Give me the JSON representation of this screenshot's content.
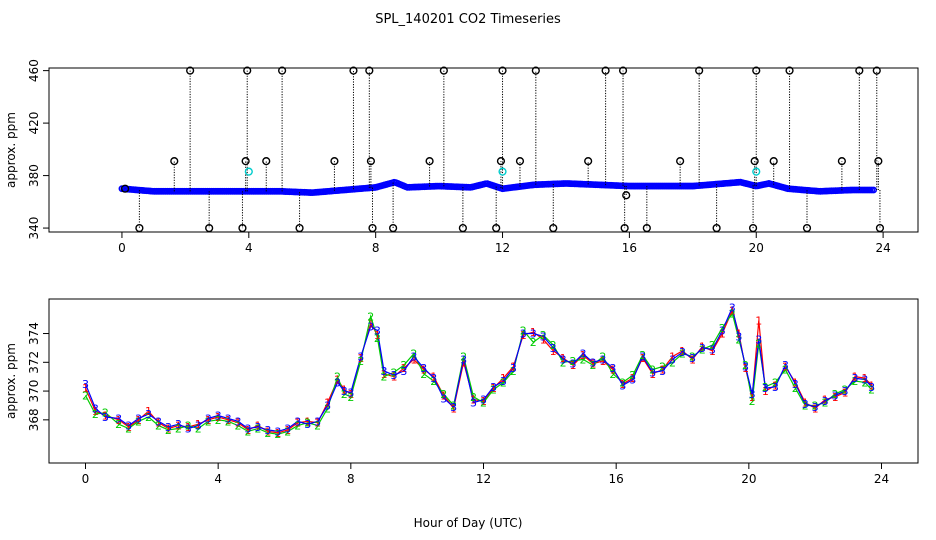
{
  "figure": {
    "title": "SPL_140201  CO2 Timeseries",
    "xlabel": "Hour of Day (UTC)"
  },
  "colors": {
    "series1": "#ff0000",
    "series2": "#00cc00",
    "series3": "#0000ff",
    "outlier": "#000000",
    "flag": "#00cccc",
    "axis": "#000000"
  },
  "chart_data": [
    {
      "type": "scatter",
      "panel": "top",
      "ylabel": "approx. ppm",
      "xlim": [
        -2.3,
        25.1
      ],
      "ylim": [
        337,
        462
      ],
      "xticks": [
        0,
        4,
        8,
        12,
        16,
        20,
        24
      ],
      "yticks": [
        340,
        380,
        420,
        460
      ],
      "baseline": {
        "x": [
          0,
          1,
          2,
          3,
          4,
          5,
          6,
          7,
          7.5,
          8,
          8.6,
          9,
          10,
          11,
          11.5,
          12,
          13,
          14,
          15,
          16,
          17,
          18,
          19,
          19.5,
          20,
          20.4,
          21,
          22,
          23,
          23.7
        ],
        "y": [
          370,
          368,
          368,
          368,
          368,
          368,
          367,
          369,
          370,
          371,
          375,
          371,
          372,
          371,
          374,
          370,
          373,
          374,
          373,
          372,
          372,
          372,
          374,
          375,
          372,
          374,
          370,
          368,
          369,
          369
        ]
      },
      "outliers": {
        "x": [
          0.1,
          0.55,
          1.65,
          2.15,
          2.75,
          3.8,
          3.9,
          3.95,
          4.55,
          5.05,
          5.6,
          6.7,
          7.3,
          7.8,
          7.85,
          7.9,
          8.55,
          9.7,
          10.15,
          10.75,
          11.8,
          11.95,
          12.0,
          12.55,
          13.05,
          13.6,
          14.7,
          15.25,
          15.8,
          15.85,
          15.9,
          16.55,
          17.6,
          18.2,
          18.75,
          19.9,
          19.95,
          20.0,
          20.55,
          21.05,
          21.6,
          22.7,
          23.25,
          23.8,
          23.85,
          23.9
        ],
        "y": [
          370,
          340,
          391,
          460,
          340,
          340,
          391,
          460,
          391,
          460,
          340,
          391,
          460,
          460,
          391,
          340,
          340,
          391,
          460,
          340,
          340,
          391,
          460,
          391,
          460,
          340,
          391,
          460,
          460,
          340,
          365,
          340,
          391,
          460,
          340,
          340,
          391,
          460,
          391,
          460,
          340,
          391,
          460,
          460,
          391,
          340
        ]
      },
      "flagged": {
        "x": [
          4.0,
          12.0,
          20.0
        ],
        "y": [
          383,
          383,
          383
        ]
      }
    },
    {
      "type": "line",
      "panel": "bottom",
      "ylabel": "approx. ppm",
      "xlim": [
        -1.1,
        25.1
      ],
      "ylim": [
        365.0,
        376.4
      ],
      "xticks": [
        0,
        4,
        8,
        12,
        16,
        20,
        24
      ],
      "yticks": [
        368,
        370,
        372,
        374
      ],
      "x": [
        0,
        0.3,
        0.6,
        1.0,
        1.3,
        1.6,
        1.9,
        2.2,
        2.5,
        2.8,
        3.1,
        3.4,
        3.7,
        4.0,
        4.3,
        4.6,
        4.9,
        5.2,
        5.5,
        5.8,
        6.1,
        6.4,
        6.7,
        7.0,
        7.3,
        7.6,
        7.8,
        8.0,
        8.3,
        8.6,
        8.8,
        9.0,
        9.3,
        9.6,
        9.9,
        10.2,
        10.5,
        10.8,
        11.1,
        11.4,
        11.7,
        12.0,
        12.3,
        12.6,
        12.9,
        13.2,
        13.5,
        13.8,
        14.1,
        14.4,
        14.7,
        15.0,
        15.3,
        15.6,
        15.9,
        16.2,
        16.5,
        16.8,
        17.1,
        17.4,
        17.7,
        18.0,
        18.3,
        18.6,
        18.9,
        19.2,
        19.5,
        19.7,
        19.9,
        20.1,
        20.3,
        20.5,
        20.8,
        21.1,
        21.4,
        21.7,
        22.0,
        22.3,
        22.6,
        22.9,
        23.2,
        23.5,
        23.7
      ],
      "series": [
        {
          "name": "1",
          "values": [
            370.2,
            368.6,
            368.3,
            368.0,
            367.5,
            368.0,
            368.6,
            367.8,
            367.4,
            367.6,
            367.5,
            367.7,
            368.0,
            368.2,
            368.0,
            367.8,
            367.3,
            367.6,
            367.2,
            367.1,
            367.3,
            367.8,
            367.9,
            367.8,
            369.2,
            370.8,
            370.1,
            369.8,
            372.3,
            374.7,
            373.9,
            371.2,
            371.0,
            371.6,
            372.2,
            371.5,
            371.0,
            369.7,
            368.8,
            372.0,
            369.4,
            369.3,
            370.2,
            370.9,
            371.7,
            373.9,
            374.1,
            373.6,
            372.8,
            372.3,
            371.8,
            372.5,
            371.9,
            372.1,
            371.5,
            370.5,
            370.9,
            372.3,
            371.2,
            371.5,
            372.4,
            372.8,
            372.2,
            373.1,
            372.8,
            374.0,
            375.6,
            374.0,
            371.6,
            369.6,
            374.9,
            370.0,
            370.4,
            371.7,
            370.6,
            369.2,
            368.8,
            369.4,
            369.6,
            369.9,
            371.0,
            370.9,
            370.4
          ]
        },
        {
          "name": "2",
          "values": [
            369.7,
            368.4,
            368.5,
            367.7,
            367.4,
            367.9,
            368.2,
            367.6,
            367.3,
            367.4,
            367.6,
            367.4,
            367.9,
            368.0,
            367.9,
            367.6,
            367.2,
            367.4,
            367.1,
            367.0,
            367.2,
            367.6,
            367.8,
            367.6,
            368.8,
            371.0,
            369.8,
            369.6,
            372.1,
            375.2,
            373.7,
            371.0,
            371.3,
            371.8,
            372.6,
            371.2,
            370.7,
            369.8,
            369.0,
            372.4,
            369.6,
            369.2,
            370.1,
            370.6,
            371.4,
            374.2,
            373.4,
            373.9,
            373.2,
            372.0,
            372.1,
            372.2,
            371.8,
            372.4,
            371.2,
            370.6,
            371.1,
            372.5,
            371.5,
            371.7,
            372.0,
            372.6,
            372.4,
            372.9,
            373.2,
            374.4,
            375.4,
            373.6,
            371.8,
            369.3,
            373.3,
            370.3,
            370.6,
            371.5,
            370.2,
            369.0,
            369.0,
            369.2,
            369.8,
            370.1,
            370.7,
            370.6,
            370.1
          ]
        },
        {
          "name": "3",
          "values": [
            370.5,
            368.8,
            368.2,
            368.1,
            367.6,
            368.1,
            368.4,
            367.9,
            367.5,
            367.7,
            367.4,
            367.6,
            368.1,
            368.3,
            368.1,
            367.9,
            367.4,
            367.5,
            367.3,
            367.2,
            367.4,
            367.9,
            367.7,
            367.9,
            369.0,
            370.6,
            370.0,
            369.9,
            372.4,
            374.5,
            374.2,
            371.4,
            371.1,
            371.4,
            372.4,
            371.6,
            370.9,
            369.5,
            368.9,
            372.2,
            369.2,
            369.4,
            370.3,
            370.7,
            371.6,
            374.0,
            374.0,
            373.8,
            373.0,
            372.2,
            371.9,
            372.6,
            372.0,
            372.2,
            371.6,
            370.4,
            370.8,
            372.4,
            371.3,
            371.4,
            372.2,
            372.7,
            372.3,
            373.0,
            372.9,
            374.2,
            375.8,
            373.8,
            371.7,
            369.8,
            373.6,
            370.2,
            370.3,
            371.8,
            370.5,
            369.1,
            368.9,
            369.3,
            369.7,
            370.0,
            370.9,
            370.8,
            370.3
          ]
        }
      ]
    }
  ]
}
